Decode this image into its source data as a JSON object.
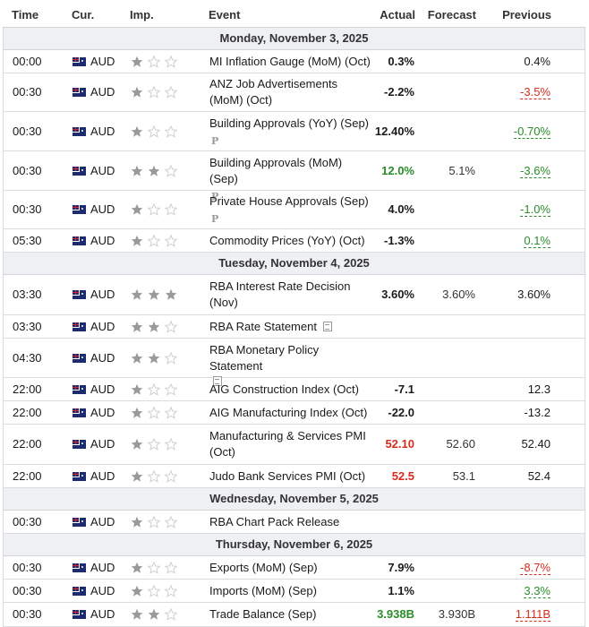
{
  "headers": {
    "time": "Time",
    "currency": "Cur.",
    "importance": "Imp.",
    "event": "Event",
    "actual": "Actual",
    "forecast": "Forecast",
    "previous": "Previous"
  },
  "colors": {
    "header_bg": "#eef0f3",
    "negative": "#d62c1e",
    "positive": "#2a8c2a",
    "star_on": "#9a9a9a",
    "star_off": "#d0d0d0"
  },
  "days": [
    {
      "label": "Monday, November 3, 2025",
      "rows": [
        {
          "time": "00:00",
          "cur": "AUD",
          "imp": 1,
          "event": "MI Inflation Gauge (MoM) (Oct)",
          "icon": "",
          "actual": "0.3%",
          "actual_color": "",
          "forecast": "",
          "previous": "0.4%",
          "previous_style": ""
        },
        {
          "time": "00:30",
          "cur": "AUD",
          "imp": 1,
          "event": "ANZ Job Advertisements (MoM) (Oct)",
          "icon": "",
          "actual": "-2.2%",
          "actual_color": "",
          "forecast": "",
          "previous": "-3.5%",
          "previous_style": "neg"
        },
        {
          "time": "00:30",
          "cur": "AUD",
          "imp": 1,
          "event": "Building Approvals (YoY) (Sep)",
          "icon": "preliminary-icon",
          "actual": "12.40%",
          "actual_color": "",
          "forecast": "",
          "previous": "-0.70%",
          "previous_style": "pos"
        },
        {
          "time": "00:30",
          "cur": "AUD",
          "imp": 2,
          "event": "Building Approvals (MoM) (Sep)",
          "icon": "preliminary-icon",
          "actual": "12.0%",
          "actual_color": "green",
          "forecast": "5.1%",
          "previous": "-3.6%",
          "previous_style": "pos"
        },
        {
          "time": "00:30",
          "cur": "AUD",
          "imp": 1,
          "event": "Private House Approvals (Sep)",
          "icon": "preliminary-icon",
          "actual": "4.0%",
          "actual_color": "",
          "forecast": "",
          "previous": "-1.0%",
          "previous_style": "pos"
        },
        {
          "time": "05:30",
          "cur": "AUD",
          "imp": 1,
          "event": "Commodity Prices (YoY) (Oct)",
          "icon": "",
          "actual": "-1.3%",
          "actual_color": "",
          "forecast": "",
          "previous": "0.1%",
          "previous_style": "pos"
        }
      ]
    },
    {
      "label": "Tuesday, November 4, 2025",
      "rows": [
        {
          "time": "03:30",
          "cur": "AUD",
          "imp": 3,
          "event": "RBA Interest Rate Decision (Nov)",
          "icon": "",
          "actual": "3.60%",
          "actual_color": "",
          "forecast": "3.60%",
          "previous": "3.60%",
          "previous_style": ""
        },
        {
          "time": "03:30",
          "cur": "AUD",
          "imp": 2,
          "event": "RBA Rate Statement",
          "icon": "document-icon",
          "actual": "",
          "actual_color": "",
          "forecast": "",
          "previous": "",
          "previous_style": ""
        },
        {
          "time": "04:30",
          "cur": "AUD",
          "imp": 2,
          "event": "RBA Monetary Policy Statement",
          "icon": "document-icon",
          "actual": "",
          "actual_color": "",
          "forecast": "",
          "previous": "",
          "previous_style": ""
        },
        {
          "time": "22:00",
          "cur": "AUD",
          "imp": 1,
          "event": "AIG Construction Index (Oct)",
          "icon": "",
          "actual": "-7.1",
          "actual_color": "",
          "forecast": "",
          "previous": "12.3",
          "previous_style": ""
        },
        {
          "time": "22:00",
          "cur": "AUD",
          "imp": 1,
          "event": "AIG Manufacturing Index (Oct)",
          "icon": "",
          "actual": "-22.0",
          "actual_color": "",
          "forecast": "",
          "previous": "-13.2",
          "previous_style": ""
        },
        {
          "time": "22:00",
          "cur": "AUD",
          "imp": 1,
          "event": "Manufacturing & Services PMI (Oct)",
          "icon": "",
          "actual": "52.10",
          "actual_color": "red",
          "forecast": "52.60",
          "previous": "52.40",
          "previous_style": ""
        },
        {
          "time": "22:00",
          "cur": "AUD",
          "imp": 1,
          "event": "Judo Bank Services PMI (Oct)",
          "icon": "",
          "actual": "52.5",
          "actual_color": "red",
          "forecast": "53.1",
          "previous": "52.4",
          "previous_style": ""
        }
      ]
    },
    {
      "label": "Wednesday, November 5, 2025",
      "rows": [
        {
          "time": "00:30",
          "cur": "AUD",
          "imp": 1,
          "event": "RBA Chart Pack Release",
          "icon": "",
          "actual": "",
          "actual_color": "",
          "forecast": "",
          "previous": "",
          "previous_style": ""
        }
      ]
    },
    {
      "label": "Thursday, November 6, 2025",
      "rows": [
        {
          "time": "00:30",
          "cur": "AUD",
          "imp": 1,
          "event": "Exports (MoM) (Sep)",
          "icon": "",
          "actual": "7.9%",
          "actual_color": "",
          "forecast": "",
          "previous": "-8.7%",
          "previous_style": "neg"
        },
        {
          "time": "00:30",
          "cur": "AUD",
          "imp": 1,
          "event": "Imports (MoM) (Sep)",
          "icon": "",
          "actual": "1.1%",
          "actual_color": "",
          "forecast": "",
          "previous": "3.3%",
          "previous_style": "pos"
        },
        {
          "time": "00:30",
          "cur": "AUD",
          "imp": 2,
          "event": "Trade Balance (Sep)",
          "icon": "",
          "actual": "3.938B",
          "actual_color": "green",
          "forecast": "3.930B",
          "previous": "1.111B",
          "previous_style": "neg"
        }
      ]
    }
  ]
}
